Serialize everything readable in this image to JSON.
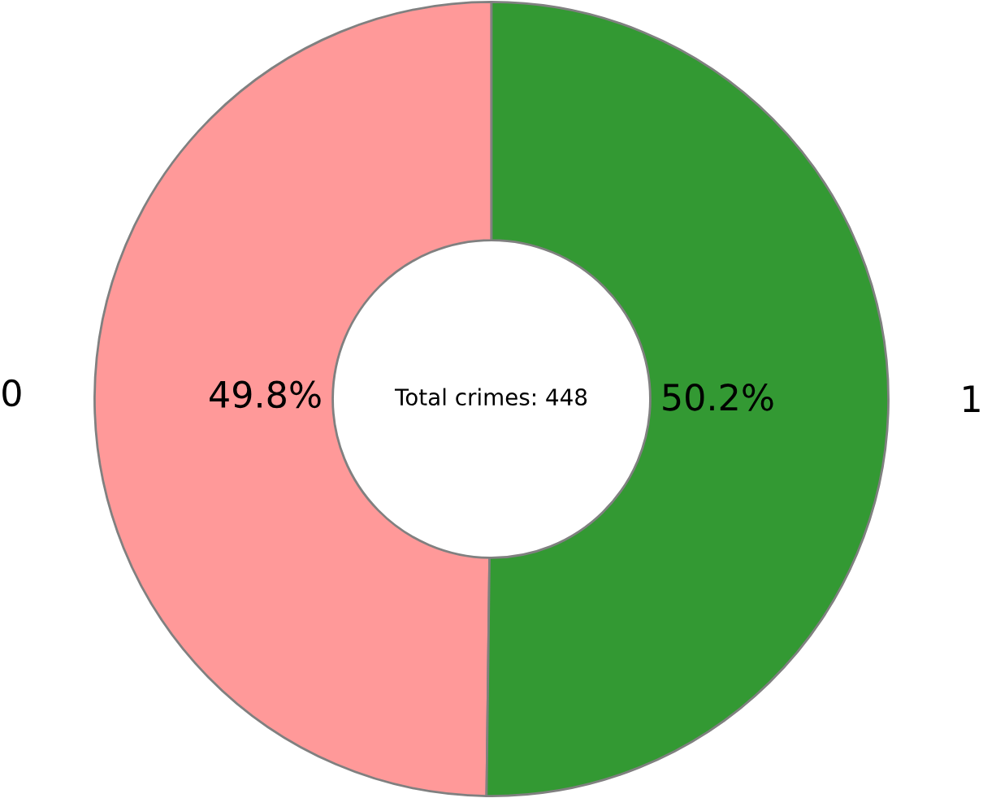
{
  "chart_data": {
    "type": "donut",
    "categories": [
      "0",
      "1"
    ],
    "values": [
      49.8,
      50.2
    ],
    "colors": [
      "#ff9999",
      "#339933"
    ],
    "value_labels": [
      "49.8%",
      "50.2%"
    ],
    "annotations": [
      "Total crimes: 448"
    ]
  }
}
